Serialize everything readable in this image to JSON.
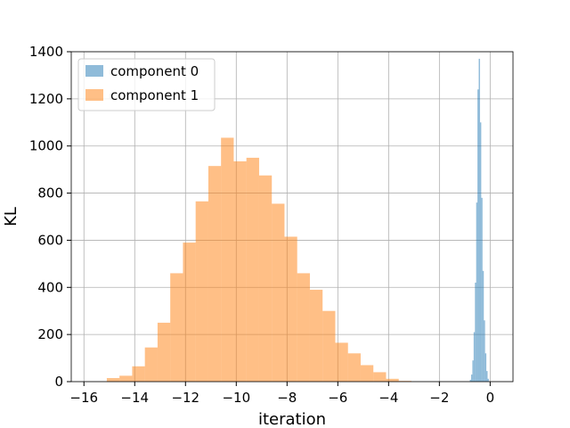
{
  "chart_data": {
    "type": "bar",
    "title": "",
    "xlabel": "iteration",
    "ylabel": "KL",
    "xlim": [
      -16.5,
      0.9
    ],
    "ylim": [
      0,
      1400
    ],
    "xticks": [
      -16,
      -14,
      -12,
      -10,
      -8,
      -6,
      -4,
      -2,
      0
    ],
    "xtick_labels": [
      "−16",
      "−14",
      "−12",
      "−10",
      "−8",
      "−6",
      "−4",
      "−2",
      "0"
    ],
    "yticks": [
      0,
      200,
      400,
      600,
      800,
      1000,
      1200,
      1400
    ],
    "ytick_labels": [
      "0",
      "200",
      "400",
      "600",
      "800",
      "1000",
      "1200",
      "1400"
    ],
    "grid": true,
    "legend_position": "top-left",
    "series": [
      {
        "name": "component 0",
        "color": "#1f77b4",
        "opacity": 0.5,
        "bins": [
          [
            -0.8,
            -0.75,
            8
          ],
          [
            -0.75,
            -0.7,
            30
          ],
          [
            -0.7,
            -0.65,
            90
          ],
          [
            -0.65,
            -0.6,
            210
          ],
          [
            -0.6,
            -0.55,
            420
          ],
          [
            -0.55,
            -0.5,
            760
          ],
          [
            -0.5,
            -0.45,
            1240
          ],
          [
            -0.45,
            -0.4,
            1370
          ],
          [
            -0.4,
            -0.35,
            1100
          ],
          [
            -0.35,
            -0.3,
            780
          ],
          [
            -0.3,
            -0.25,
            470
          ],
          [
            -0.25,
            -0.2,
            260
          ],
          [
            -0.2,
            -0.15,
            120
          ],
          [
            -0.15,
            -0.1,
            45
          ],
          [
            -0.1,
            -0.05,
            12
          ]
        ]
      },
      {
        "name": "component 1",
        "color": "#ff7f0e",
        "opacity": 0.5,
        "bins": [
          [
            -15.1,
            -14.6,
            15
          ],
          [
            -14.6,
            -14.1,
            25
          ],
          [
            -14.1,
            -13.6,
            65
          ],
          [
            -13.6,
            -13.1,
            145
          ],
          [
            -13.1,
            -12.6,
            250
          ],
          [
            -12.6,
            -12.1,
            460
          ],
          [
            -12.1,
            -11.6,
            590
          ],
          [
            -11.6,
            -11.1,
            765
          ],
          [
            -11.1,
            -10.6,
            915
          ],
          [
            -10.6,
            -10.1,
            1035
          ],
          [
            -10.1,
            -9.6,
            935
          ],
          [
            -9.6,
            -9.1,
            950
          ],
          [
            -9.1,
            -8.6,
            875
          ],
          [
            -8.6,
            -8.1,
            755
          ],
          [
            -8.1,
            -7.6,
            615
          ],
          [
            -7.6,
            -7.1,
            460
          ],
          [
            -7.1,
            -6.6,
            390
          ],
          [
            -6.6,
            -6.1,
            300
          ],
          [
            -6.1,
            -5.6,
            165
          ],
          [
            -5.6,
            -5.1,
            120
          ],
          [
            -5.1,
            -4.6,
            70
          ],
          [
            -4.6,
            -4.1,
            40
          ],
          [
            -4.1,
            -3.6,
            12
          ],
          [
            -3.6,
            -3.1,
            3
          ]
        ]
      }
    ]
  }
}
